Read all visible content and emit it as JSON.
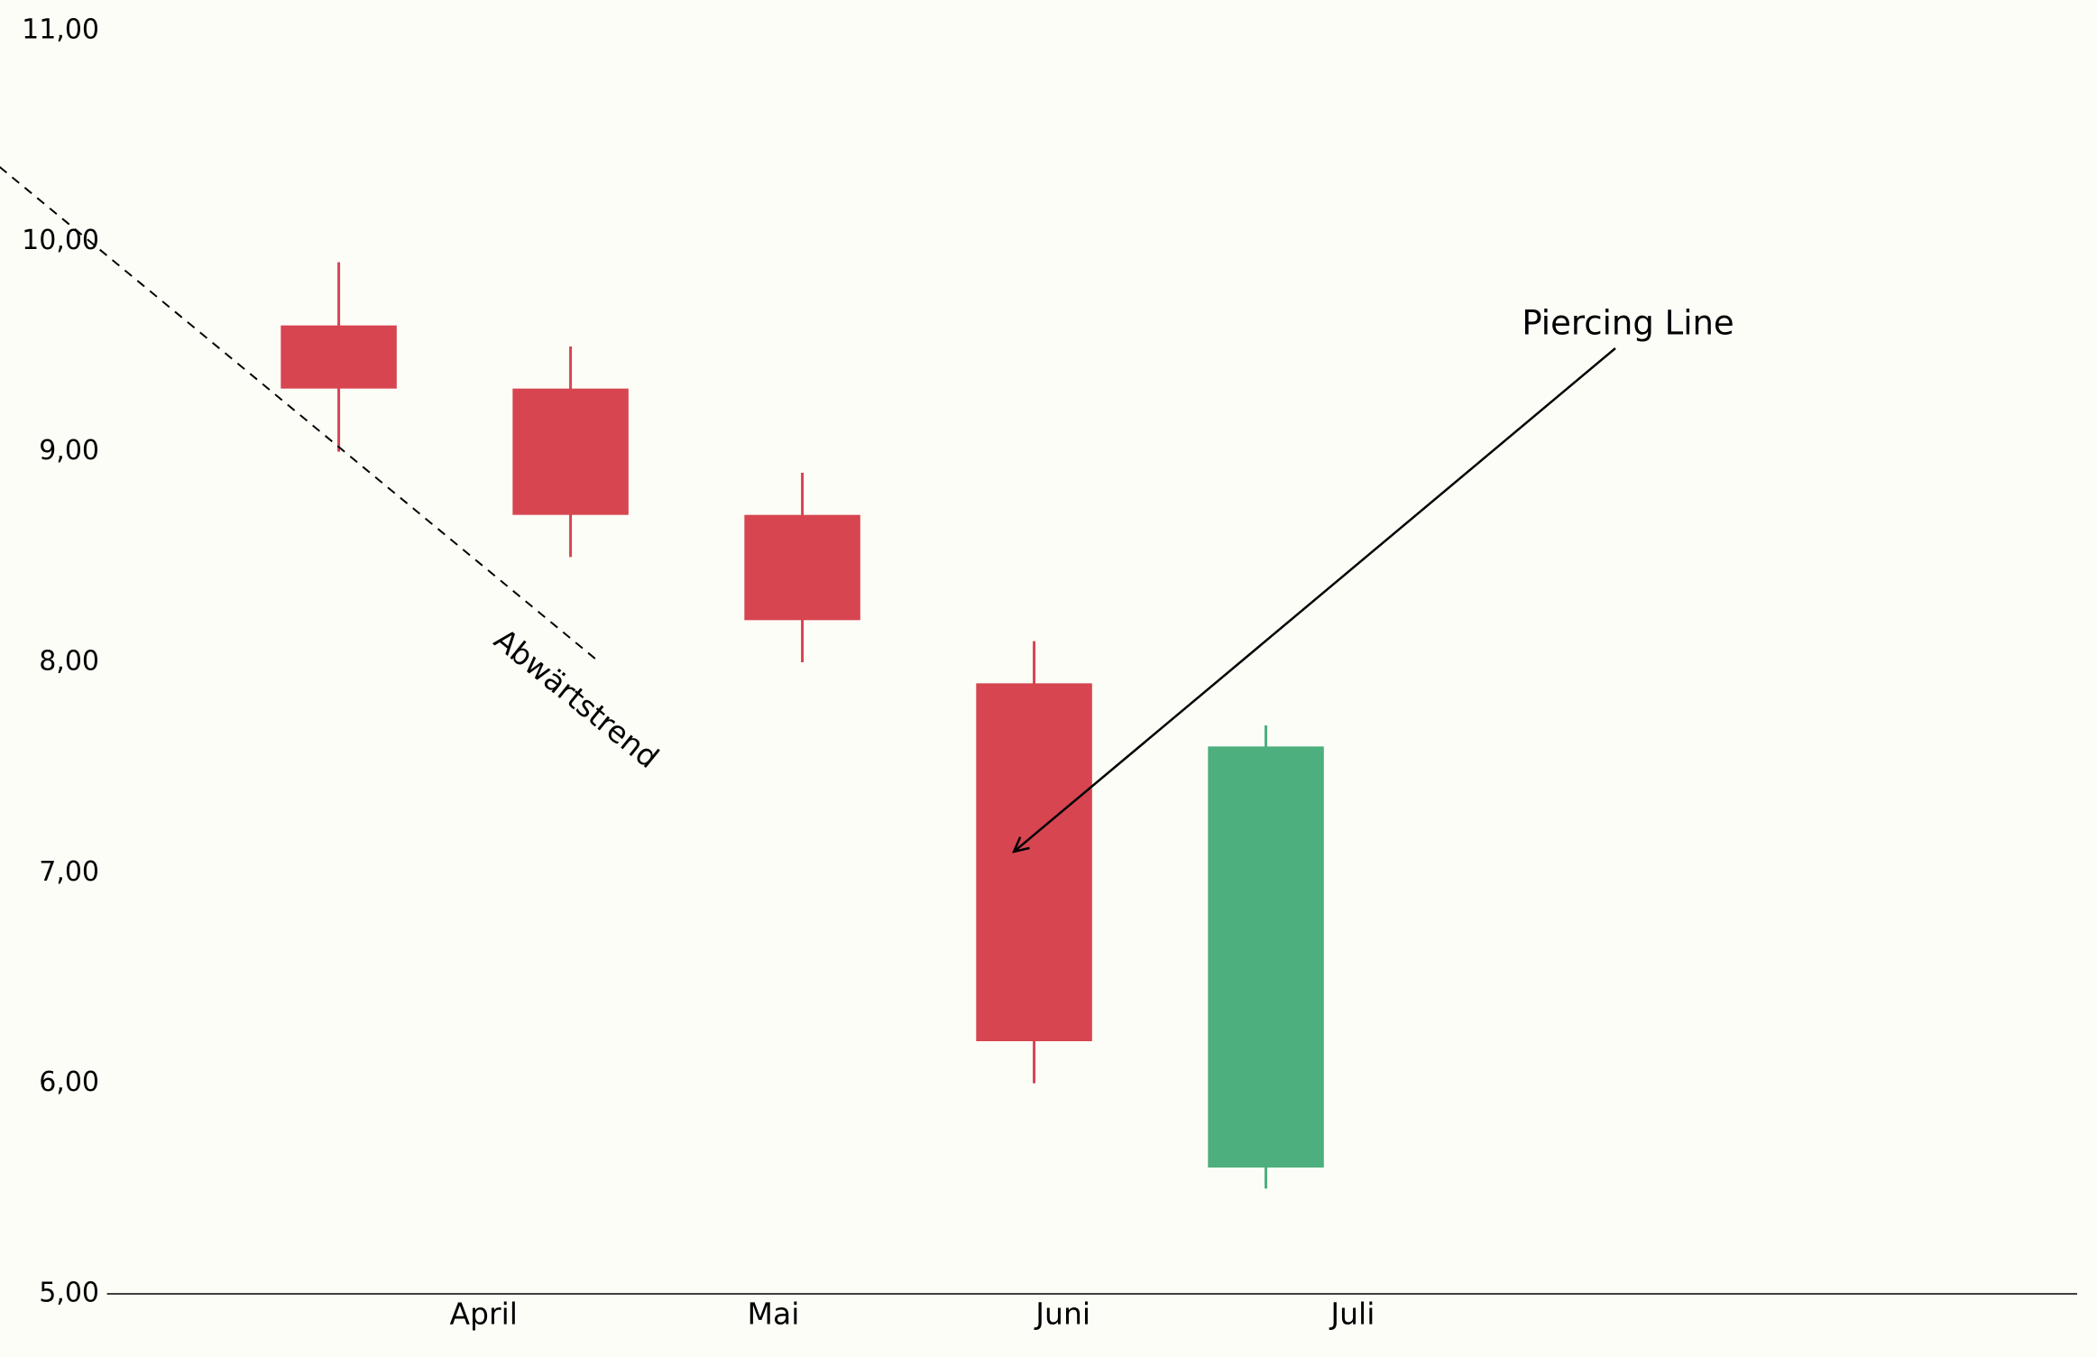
{
  "chart_data": {
    "type": "candlestick",
    "x": [
      0.5,
      1.3,
      2.1,
      2.9,
      3.7
    ],
    "open": [
      9.6,
      9.3,
      8.7,
      7.9,
      5.6
    ],
    "high": [
      9.9,
      9.5,
      8.9,
      8.1,
      7.7
    ],
    "low": [
      9.0,
      8.5,
      8.0,
      6.0,
      5.5
    ],
    "close": [
      9.3,
      8.7,
      8.2,
      6.2,
      7.6
    ],
    "up_color": "#4caf7d",
    "down_color": "#d64550",
    "xlim": [
      -0.3,
      6.5
    ],
    "xticks": [
      {
        "value": 1,
        "label": "April"
      },
      {
        "value": 2,
        "label": "Mai"
      },
      {
        "value": 3,
        "label": "Juni"
      },
      {
        "value": 4,
        "label": "Juli"
      }
    ],
    "ylim": [
      5,
      11
    ],
    "yticks": [
      {
        "value": 5,
        "label": "5,00"
      },
      {
        "value": 6,
        "label": "6,00"
      },
      {
        "value": 7,
        "label": "7,00"
      },
      {
        "value": 8,
        "label": "8,00"
      },
      {
        "value": 9,
        "label": "9,00"
      },
      {
        "value": 10,
        "label": "10,00"
      },
      {
        "value": 11,
        "label": "11,00"
      }
    ],
    "trendline": {
      "label": "Abwärtstrend",
      "x": [
        -0.8,
        1.4
      ],
      "y": [
        10.5,
        8.0
      ]
    },
    "annotation": {
      "text": "Piercing Line",
      "xy": [
        2.83,
        7.1
      ]
    }
  }
}
